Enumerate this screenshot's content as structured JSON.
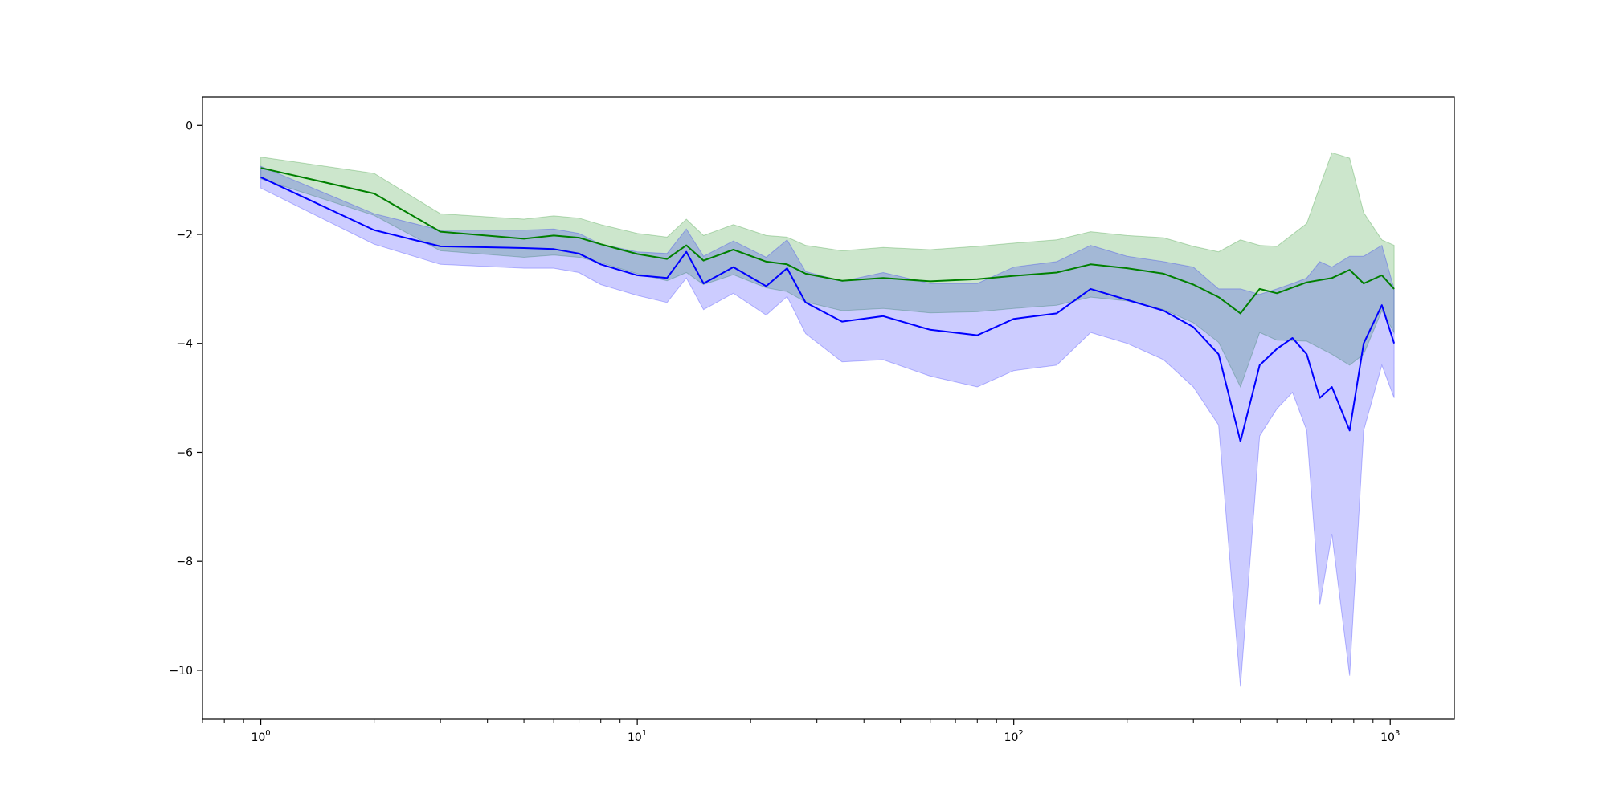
{
  "chart_data": {
    "type": "line",
    "title": "",
    "xlabel": "",
    "ylabel": "",
    "xscale": "log",
    "xlim": [
      0.7,
      1480
    ],
    "ylim": [
      -10.9,
      0.52
    ],
    "grid": false,
    "legend": "none",
    "xticks": [
      {
        "value": 1,
        "base": "10",
        "exp": "0"
      },
      {
        "value": 10,
        "base": "10",
        "exp": "1"
      },
      {
        "value": 100,
        "base": "10",
        "exp": "2"
      },
      {
        "value": 1000,
        "base": "10",
        "exp": "3"
      }
    ],
    "yticks": [
      {
        "value": 0,
        "label": "0"
      },
      {
        "value": -2,
        "label": "−2"
      },
      {
        "value": -4,
        "label": "−4"
      },
      {
        "value": -6,
        "label": "−6"
      },
      {
        "value": -8,
        "label": "−8"
      },
      {
        "value": -10,
        "label": "−10"
      }
    ],
    "series": [
      {
        "color": "#008000",
        "band_color": "#008000",
        "band_opacity": 0.2,
        "points": [
          [
            1,
            -0.78,
            -0.58,
            -0.98
          ],
          [
            2,
            -1.25,
            -0.88,
            -1.65
          ],
          [
            3,
            -1.95,
            -1.62,
            -2.3
          ],
          [
            5,
            -2.08,
            -1.72,
            -2.42
          ],
          [
            6,
            -2.02,
            -1.66,
            -2.38
          ],
          [
            7,
            -2.06,
            -1.7,
            -2.42
          ],
          [
            8,
            -2.18,
            -1.82,
            -2.52
          ],
          [
            10,
            -2.36,
            -1.98,
            -2.72
          ],
          [
            12,
            -2.45,
            -2.05,
            -2.85
          ],
          [
            13.5,
            -2.2,
            -1.72,
            -2.7
          ],
          [
            15,
            -2.48,
            -2.02,
            -2.92
          ],
          [
            18,
            -2.28,
            -1.82,
            -2.74
          ],
          [
            22,
            -2.5,
            -2.02,
            -2.98
          ],
          [
            25,
            -2.55,
            -2.05,
            -3.05
          ],
          [
            28,
            -2.72,
            -2.2,
            -3.24
          ],
          [
            35,
            -2.85,
            -2.3,
            -3.4
          ],
          [
            45,
            -2.8,
            -2.24,
            -3.36
          ],
          [
            60,
            -2.86,
            -2.28,
            -3.44
          ],
          [
            80,
            -2.82,
            -2.22,
            -3.42
          ],
          [
            100,
            -2.76,
            -2.16,
            -3.36
          ],
          [
            130,
            -2.7,
            -2.1,
            -3.3
          ],
          [
            160,
            -2.55,
            -1.95,
            -3.15
          ],
          [
            200,
            -2.62,
            -2.02,
            -3.22
          ],
          [
            250,
            -2.72,
            -2.06,
            -3.38
          ],
          [
            300,
            -2.92,
            -2.22,
            -3.62
          ],
          [
            350,
            -3.15,
            -2.32,
            -3.98
          ],
          [
            400,
            -3.45,
            -2.1,
            -4.8
          ],
          [
            450,
            -3.0,
            -2.2,
            -3.8
          ],
          [
            500,
            -3.08,
            -2.22,
            -3.94
          ],
          [
            600,
            -2.88,
            -1.8,
            -3.96
          ],
          [
            700,
            -2.8,
            -0.5,
            -4.2
          ],
          [
            780,
            -2.65,
            -0.6,
            -4.4
          ],
          [
            850,
            -2.9,
            -1.6,
            -4.2
          ],
          [
            950,
            -2.75,
            -2.1,
            -3.4
          ],
          [
            1024,
            -3.0,
            -2.2,
            -3.8
          ]
        ]
      },
      {
        "color": "#0000ff",
        "band_color": "#0000ff",
        "band_opacity": 0.2,
        "points": [
          [
            1,
            -0.95,
            -0.75,
            -1.15
          ],
          [
            2,
            -1.92,
            -1.62,
            -2.18
          ],
          [
            3,
            -2.22,
            -1.92,
            -2.55
          ],
          [
            5,
            -2.25,
            -1.92,
            -2.62
          ],
          [
            6,
            -2.27,
            -1.9,
            -2.62
          ],
          [
            7,
            -2.35,
            -1.98,
            -2.7
          ],
          [
            8,
            -2.55,
            -2.18,
            -2.92
          ],
          [
            10,
            -2.75,
            -2.32,
            -3.12
          ],
          [
            12,
            -2.8,
            -2.35,
            -3.25
          ],
          [
            13.5,
            -2.32,
            -1.9,
            -2.8
          ],
          [
            15,
            -2.9,
            -2.4,
            -3.38
          ],
          [
            18,
            -2.6,
            -2.12,
            -3.08
          ],
          [
            22,
            -2.95,
            -2.42,
            -3.48
          ],
          [
            25,
            -2.62,
            -2.1,
            -3.14
          ],
          [
            28,
            -3.25,
            -2.68,
            -3.82
          ],
          [
            35,
            -3.6,
            -2.86,
            -4.34
          ],
          [
            45,
            -3.5,
            -2.7,
            -4.3
          ],
          [
            60,
            -3.75,
            -2.9,
            -4.6
          ],
          [
            80,
            -3.85,
            -2.9,
            -4.8
          ],
          [
            100,
            -3.55,
            -2.6,
            -4.5
          ],
          [
            130,
            -3.45,
            -2.5,
            -4.4
          ],
          [
            160,
            -3.0,
            -2.2,
            -3.8
          ],
          [
            200,
            -3.2,
            -2.4,
            -4.0
          ],
          [
            250,
            -3.4,
            -2.5,
            -4.3
          ],
          [
            300,
            -3.7,
            -2.6,
            -4.8
          ],
          [
            350,
            -4.2,
            -3.0,
            -5.5
          ],
          [
            400,
            -5.8,
            -3.0,
            -10.3
          ],
          [
            450,
            -4.4,
            -3.1,
            -5.7
          ],
          [
            500,
            -4.1,
            -3.0,
            -5.2
          ],
          [
            550,
            -3.9,
            -2.9,
            -4.9
          ],
          [
            600,
            -4.2,
            -2.8,
            -5.6
          ],
          [
            650,
            -5.0,
            -2.5,
            -8.8
          ],
          [
            700,
            -4.8,
            -2.6,
            -7.5
          ],
          [
            780,
            -5.6,
            -2.4,
            -10.1
          ],
          [
            850,
            -4.0,
            -2.4,
            -5.6
          ],
          [
            950,
            -3.3,
            -2.2,
            -4.4
          ],
          [
            1024,
            -4.0,
            -3.0,
            -5.0
          ]
        ]
      }
    ]
  }
}
